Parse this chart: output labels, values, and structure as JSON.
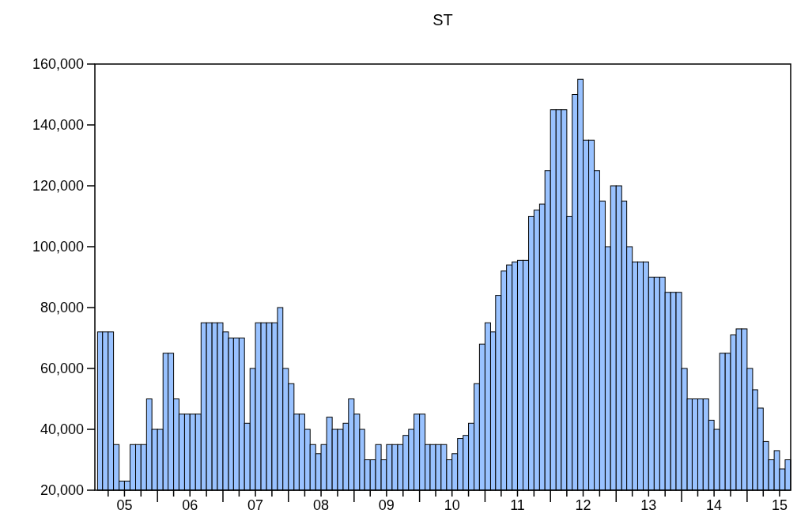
{
  "chart_data": {
    "type": "bar",
    "title": "ST",
    "color": "#99c2ff",
    "x": [
      "2005-02",
      "2005-03",
      "2005-04",
      "2005-05",
      "2005-06",
      "2005-07",
      "2005-08",
      "2005-09",
      "2005-10",
      "2005-11",
      "2005-12",
      "2006-01",
      "2006-02",
      "2006-03",
      "2006-04",
      "2006-05",
      "2006-06",
      "2006-07",
      "2006-08",
      "2006-09",
      "2006-10",
      "2006-11",
      "2006-12",
      "2007-01",
      "2007-02",
      "2007-03",
      "2007-04",
      "2007-05",
      "2007-06",
      "2007-07",
      "2007-08",
      "2007-09",
      "2007-10",
      "2007-11",
      "2007-12",
      "2008-01",
      "2008-02",
      "2008-03",
      "2008-04",
      "2008-05",
      "2008-06",
      "2008-07",
      "2008-08",
      "2008-09",
      "2008-10",
      "2008-11",
      "2008-12",
      "2009-01",
      "2009-02",
      "2009-03",
      "2009-04",
      "2009-05",
      "2009-06",
      "2009-07",
      "2009-08",
      "2009-09",
      "2009-10",
      "2009-11",
      "2009-12",
      "2010-01",
      "2010-02",
      "2010-03",
      "2010-04",
      "2010-05",
      "2010-06",
      "2010-07",
      "2010-08",
      "2010-09",
      "2010-10",
      "2010-11",
      "2010-12",
      "2011-01",
      "2011-02",
      "2011-03",
      "2011-04",
      "2011-05",
      "2011-06",
      "2011-07",
      "2011-08",
      "2011-09",
      "2011-10",
      "2011-11",
      "2011-12",
      "2012-01",
      "2012-02",
      "2012-03",
      "2012-04",
      "2012-05",
      "2012-06",
      "2012-07",
      "2012-08",
      "2012-09",
      "2012-10",
      "2012-11",
      "2012-12",
      "2013-01",
      "2013-02",
      "2013-03",
      "2013-04",
      "2013-05",
      "2013-06",
      "2013-07",
      "2013-08",
      "2013-09",
      "2013-10",
      "2013-11",
      "2013-12",
      "2014-01",
      "2014-02",
      "2014-03",
      "2014-04",
      "2014-05",
      "2014-06",
      "2014-07",
      "2014-08",
      "2014-09",
      "2014-10",
      "2014-11",
      "2014-12",
      "2015-01",
      "2015-02",
      "2015-03",
      "2015-04",
      "2015-05",
      "2015-06",
      "2015-07",
      "2015-08"
    ],
    "values": [
      72000,
      72000,
      72000,
      35000,
      23000,
      23000,
      35000,
      35000,
      35000,
      50000,
      40000,
      40000,
      65000,
      65000,
      50000,
      45000,
      45000,
      45000,
      45000,
      75000,
      75000,
      75000,
      75000,
      72000,
      70000,
      70000,
      70000,
      42000,
      60000,
      75000,
      75000,
      75000,
      75000,
      80000,
      60000,
      55000,
      45000,
      45000,
      40000,
      35000,
      32000,
      35000,
      44000,
      40000,
      40000,
      42000,
      50000,
      45000,
      40000,
      30000,
      30000,
      35000,
      30000,
      35000,
      35000,
      35000,
      38000,
      40000,
      45000,
      45000,
      35000,
      35000,
      35000,
      35000,
      30000,
      32000,
      37000,
      38000,
      42000,
      55000,
      68000,
      75000,
      72000,
      84000,
      92000,
      94000,
      95000,
      95500,
      95500,
      110000,
      112000,
      114000,
      125000,
      145000,
      145000,
      145000,
      110000,
      150000,
      155000,
      135000,
      135000,
      125000,
      115000,
      100000,
      120000,
      120000,
      115000,
      100000,
      95000,
      95000,
      95000,
      90000,
      90000,
      90000,
      85000,
      85000,
      85000,
      60000,
      50000,
      50000,
      50000,
      50000,
      43000,
      40000,
      65000,
      65000,
      71000,
      73000,
      73000,
      60000,
      53000,
      47000,
      36000,
      30000,
      33000,
      27000,
      30000
    ],
    "xlim": [
      "2005-01-17",
      "2015-09-01"
    ],
    "xticks": [
      {
        "value": "2005-04-01",
        "label": null
      },
      {
        "value": "2005-07-01",
        "label": "05"
      },
      {
        "value": "2005-10-01",
        "label": null
      },
      {
        "value": "2006-01-01",
        "label": null
      },
      {
        "value": "2006-04-01",
        "label": null
      },
      {
        "value": "2006-07-01",
        "label": "06"
      },
      {
        "value": "2006-10-01",
        "label": null
      },
      {
        "value": "2007-01-01",
        "label": null
      },
      {
        "value": "2007-04-01",
        "label": null
      },
      {
        "value": "2007-07-01",
        "label": "07"
      },
      {
        "value": "2007-10-01",
        "label": null
      },
      {
        "value": "2008-01-01",
        "label": null
      },
      {
        "value": "2008-04-01",
        "label": null
      },
      {
        "value": "2008-07-01",
        "label": "08"
      },
      {
        "value": "2008-10-01",
        "label": null
      },
      {
        "value": "2009-01-01",
        "label": null
      },
      {
        "value": "2009-04-01",
        "label": null
      },
      {
        "value": "2009-07-01",
        "label": "09"
      },
      {
        "value": "2009-10-01",
        "label": null
      },
      {
        "value": "2010-01-01",
        "label": null
      },
      {
        "value": "2010-04-01",
        "label": null
      },
      {
        "value": "2010-07-01",
        "label": "10"
      },
      {
        "value": "2010-10-01",
        "label": null
      },
      {
        "value": "2011-01-01",
        "label": null
      },
      {
        "value": "2011-04-01",
        "label": null
      },
      {
        "value": "2011-07-01",
        "label": "11"
      },
      {
        "value": "2011-10-01",
        "label": null
      },
      {
        "value": "2012-01-01",
        "label": null
      },
      {
        "value": "2012-04-01",
        "label": null
      },
      {
        "value": "2012-07-01",
        "label": "12"
      },
      {
        "value": "2012-10-01",
        "label": null
      },
      {
        "value": "2013-01-01",
        "label": null
      },
      {
        "value": "2013-04-01",
        "label": null
      },
      {
        "value": "2013-07-01",
        "label": "13"
      },
      {
        "value": "2013-10-01",
        "label": null
      },
      {
        "value": "2014-01-01",
        "label": null
      },
      {
        "value": "2014-04-01",
        "label": null
      },
      {
        "value": "2014-07-01",
        "label": "14"
      },
      {
        "value": "2014-10-01",
        "label": null
      },
      {
        "value": "2015-01-01",
        "label": null
      },
      {
        "value": "2015-04-01",
        "label": null
      },
      {
        "value": "2015-07-01",
        "label": "15"
      }
    ],
    "ylim": [
      20000,
      160000
    ],
    "yticks": [
      {
        "value": 20000,
        "label": "20,000"
      },
      {
        "value": 40000,
        "label": "40,000"
      },
      {
        "value": 60000,
        "label": "60,000"
      },
      {
        "value": 80000,
        "label": "80,000"
      },
      {
        "value": 100000,
        "label": "100,000"
      },
      {
        "value": 120000,
        "label": "120,000"
      },
      {
        "value": 140000,
        "label": "140,000"
      },
      {
        "value": 160000,
        "label": "160,000"
      }
    ]
  }
}
